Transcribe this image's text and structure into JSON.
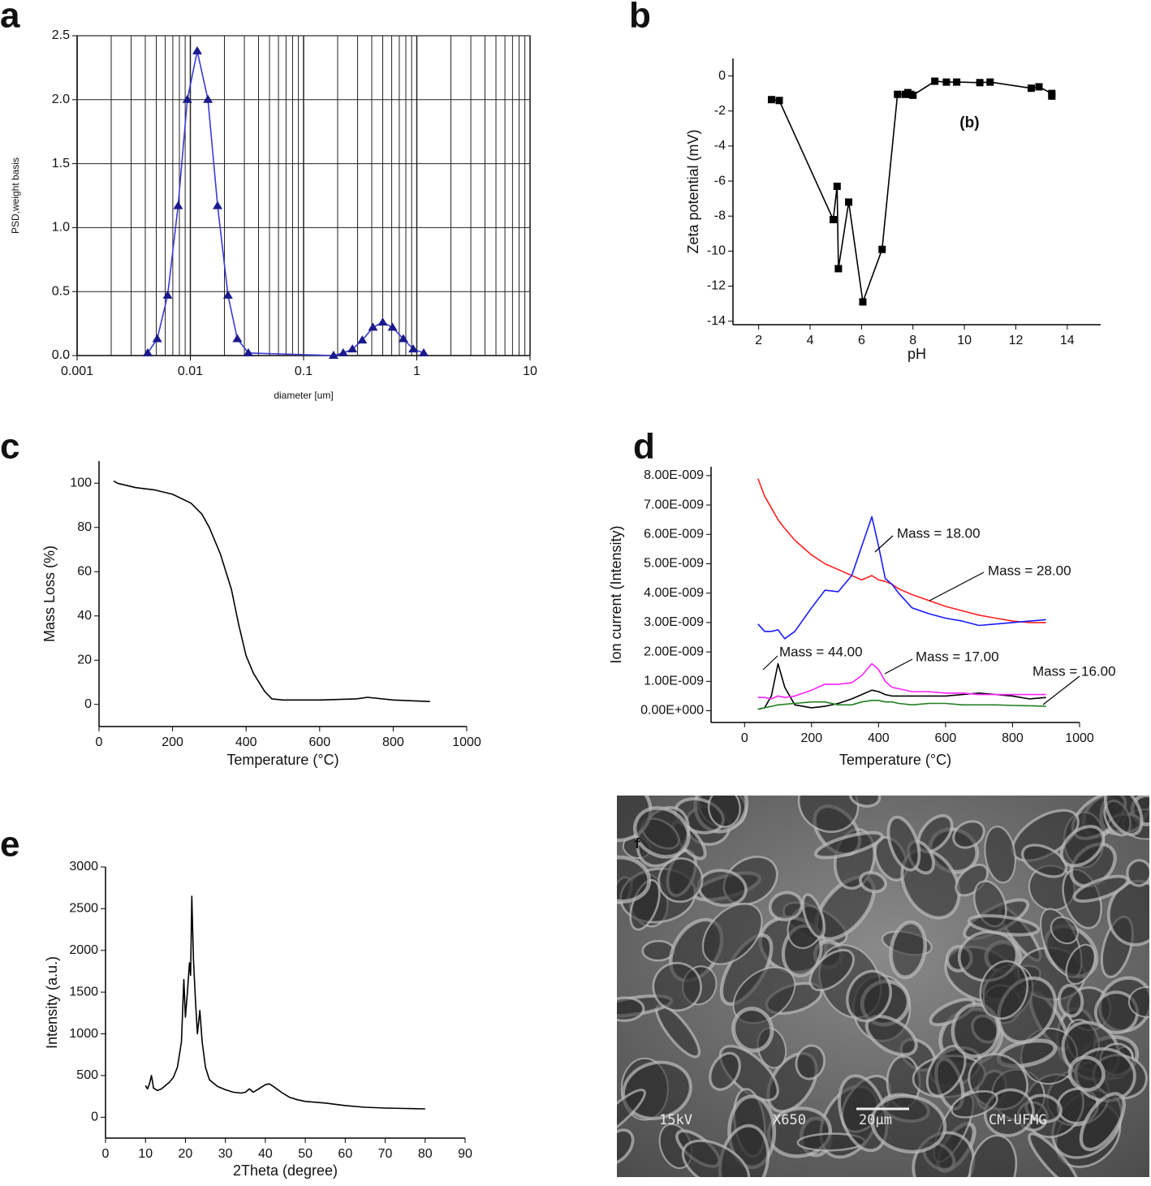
{
  "chart_data": [
    {
      "type": "line",
      "label": "a",
      "xlabel": "diameter [um]",
      "ylabel": "PSD,weight basis",
      "xscale": "log",
      "grid": true,
      "marker": "triangle",
      "x": [
        0.0042,
        0.0051,
        0.0063,
        0.0078,
        0.0094,
        0.0115,
        0.0143,
        0.0174,
        0.0215,
        0.026,
        0.0325,
        0.184,
        0.224,
        0.27,
        0.33,
        0.41,
        0.5,
        0.61,
        0.76,
        0.93,
        1.15
      ],
      "series": [
        {
          "color": "#3a3ad6",
          "values": [
            0.02,
            0.13,
            0.47,
            1.17,
            2.0,
            2.38,
            2.0,
            1.17,
            0.47,
            0.13,
            0.02,
            0.0,
            0.02,
            0.05,
            0.12,
            0.22,
            0.26,
            0.22,
            0.13,
            0.05,
            0.02
          ]
        }
      ],
      "xlim": [
        0.001,
        10
      ],
      "xticks": [
        0.001,
        0.01,
        0.1,
        1,
        10
      ],
      "ylim": [
        0,
        2.5
      ],
      "yticks": [
        {
          "value": 0,
          "label": "0.0"
        },
        0.5,
        {
          "value": 1,
          "label": "1.0"
        },
        1.5,
        {
          "value": 2,
          "label": "2.0"
        },
        2.5
      ]
    },
    {
      "type": "line",
      "label": "b",
      "xlabel": "pH",
      "ylabel": "Zeta potential (mV)",
      "marker": "square",
      "annotation": "(b)",
      "x": [
        2.5,
        2.8,
        4.9,
        5.05,
        5.1,
        5.5,
        6.05,
        6.8,
        7.4,
        7.7,
        7.8,
        7.9,
        8.0,
        8.85,
        9.3,
        9.7,
        10.6,
        11.0,
        12.6,
        12.9,
        13.4,
        13.4
      ],
      "series": [
        {
          "color": "#000000",
          "values": [
            -1.35,
            -1.4,
            -8.2,
            -6.3,
            -11.0,
            -7.2,
            -12.9,
            -9.9,
            -1.05,
            -1.05,
            -0.95,
            -1.05,
            -1.1,
            -0.3,
            -0.35,
            -0.35,
            -0.38,
            -0.35,
            -0.7,
            -0.62,
            -1.0,
            -1.15
          ]
        }
      ],
      "xlim": [
        1,
        15.3
      ],
      "xticks": [
        2,
        4,
        6,
        8,
        10,
        12,
        14
      ],
      "ylim": [
        -14.2,
        1
      ],
      "yticks": [
        -14,
        -12,
        -10,
        -8,
        -6,
        -4,
        -2,
        0
      ]
    },
    {
      "type": "line",
      "label": "c",
      "xlabel": "Temperature (°C)",
      "ylabel": "Mass Loss (%)",
      "x": [
        40,
        50,
        100,
        150,
        200,
        250,
        280,
        300,
        330,
        360,
        380,
        400,
        420,
        450,
        470,
        500,
        600,
        700,
        730,
        800,
        900
      ],
      "series": [
        {
          "color": "#000000",
          "values": [
            101,
            100,
            98,
            97,
            95,
            91,
            86,
            80,
            68,
            52,
            36,
            22,
            14,
            6,
            2.5,
            2,
            2,
            2.5,
            3.2,
            2,
            1.3
          ]
        }
      ],
      "xlim": [
        0,
        1000
      ],
      "xticks": [
        0,
        200,
        400,
        600,
        800,
        1000
      ],
      "ylim": [
        -10,
        110
      ],
      "yticks": [
        0,
        20,
        40,
        60,
        80,
        100
      ]
    },
    {
      "type": "line",
      "label": "d",
      "xlabel": "Temperature (°C)",
      "ylabel": "Ion current (Intensity)",
      "x": [
        40,
        60,
        80,
        100,
        120,
        150,
        200,
        240,
        280,
        320,
        350,
        380,
        400,
        420,
        440,
        460,
        500,
        550,
        600,
        650,
        700,
        750,
        800,
        850,
        900
      ],
      "series": [
        {
          "name": "Mass = 28.00",
          "color": "#ff2020",
          "values": [
            7.9e-09,
            7.3e-09,
            6.9e-09,
            6.5e-09,
            6.2e-09,
            5.8e-09,
            5.3e-09,
            5e-09,
            4.8e-09,
            4.6e-09,
            4.45e-09,
            4.6e-09,
            4.45e-09,
            4.4e-09,
            4.3e-09,
            4.15e-09,
            3.95e-09,
            3.75e-09,
            3.55e-09,
            3.4e-09,
            3.25e-09,
            3.15e-09,
            3.05e-09,
            3e-09,
            3e-09
          ]
        },
        {
          "name": "Mass = 18.00",
          "color": "#1a1aff",
          "values": [
            2.95e-09,
            2.7e-09,
            2.7e-09,
            2.75e-09,
            2.45e-09,
            2.7e-09,
            3.5e-09,
            4.1e-09,
            4.05e-09,
            4.6e-09,
            5.6e-09,
            6.6e-09,
            5.6e-09,
            4.5e-09,
            4.3e-09,
            4e-09,
            3.5e-09,
            3.3e-09,
            3.15e-09,
            3.05e-09,
            2.9e-09,
            2.95e-09,
            3e-09,
            3.05e-09,
            3.1e-09
          ]
        },
        {
          "name": "Mass = 44.00",
          "color": "#000000",
          "values": [
            5e-11,
            1e-10,
            5e-10,
            1.6e-09,
            8e-10,
            2e-10,
            1e-10,
            1.5e-10,
            2.5e-10,
            4e-10,
            5.5e-10,
            7e-10,
            6.5e-10,
            5.5e-10,
            5e-10,
            5e-10,
            5e-10,
            5e-10,
            5e-10,
            5.5e-10,
            6e-10,
            5.5e-10,
            5e-10,
            4e-10,
            4.5e-10
          ]
        },
        {
          "name": "Mass = 17.00",
          "color": "#ff20ff",
          "values": [
            4.5e-10,
            4.5e-10,
            4e-10,
            5e-10,
            4.5e-10,
            5e-10,
            7e-10,
            9e-10,
            9e-10,
            9.5e-10,
            1.2e-09,
            1.6e-09,
            1.4e-09,
            1e-09,
            8e-10,
            7.5e-10,
            6.5e-10,
            6.5e-10,
            6e-10,
            6e-10,
            5.5e-10,
            5.5e-10,
            5.5e-10,
            5.5e-10,
            5.5e-10
          ]
        },
        {
          "name": "Mass = 16.00",
          "color": "#208020",
          "values": [
            5e-11,
            1e-10,
            1.5e-10,
            2e-10,
            2.2e-10,
            2.5e-10,
            3e-10,
            3e-10,
            2e-10,
            2e-10,
            3e-10,
            3.5e-10,
            3.5e-10,
            3e-10,
            3e-10,
            2.5e-10,
            2e-10,
            2.5e-10,
            2.5e-10,
            2e-10,
            2e-10,
            2e-10,
            1.8e-10,
            1.7e-10,
            1.5e-10
          ]
        }
      ],
      "xlim": [
        -100,
        1000
      ],
      "xticks": [
        0,
        200,
        400,
        600,
        800,
        1000
      ],
      "ylim": [
        -4e-10,
        8.3e-09
      ],
      "yticks": [
        {
          "value": 0,
          "label": "0.00E+000"
        },
        {
          "value": 1e-09,
          "label": "1.00E-009"
        },
        {
          "value": 2e-09,
          "label": "2.00E-009"
        },
        {
          "value": 3e-09,
          "label": "3.00E-009"
        },
        {
          "value": 4e-09,
          "label": "4.00E-009"
        },
        {
          "value": 5e-09,
          "label": "5.00E-009"
        },
        {
          "value": 6e-09,
          "label": "6.00E-009"
        },
        {
          "value": 7e-09,
          "label": "7.00E-009"
        },
        {
          "value": 8e-09,
          "label": "8.00E-009"
        }
      ]
    },
    {
      "type": "line",
      "label": "e",
      "xlabel": "2Theta (degree)",
      "ylabel": "Intensity (a.u.)",
      "x": [
        10,
        10.5,
        11,
        11.5,
        12,
        13,
        14,
        15,
        16,
        17,
        18,
        19,
        19.6,
        20,
        20.5,
        21,
        21.3,
        21.6,
        22,
        22.5,
        23,
        23.6,
        24.2,
        25,
        26,
        28,
        30,
        32,
        34,
        35,
        36,
        37,
        38,
        40,
        41,
        42,
        44,
        46,
        48,
        50,
        55,
        60,
        65,
        70,
        75,
        80
      ],
      "series": [
        {
          "color": "#000000",
          "values": [
            380,
            340,
            400,
            500,
            350,
            320,
            340,
            380,
            420,
            480,
            600,
            900,
            1650,
            1200,
            1500,
            1850,
            1700,
            2650,
            1900,
            1400,
            1000,
            1280,
            900,
            600,
            450,
            370,
            330,
            300,
            290,
            300,
            340,
            300,
            330,
            390,
            400,
            370,
            300,
            240,
            210,
            190,
            170,
            140,
            120,
            110,
            105,
            100
          ]
        }
      ],
      "xlim": [
        0,
        90
      ],
      "xticks": [
        0,
        10,
        20,
        30,
        40,
        50,
        60,
        70,
        80,
        90
      ],
      "ylim": [
        -250,
        3000
      ],
      "yticks": [
        0,
        500,
        1000,
        1500,
        2000,
        2500,
        3000
      ]
    }
  ],
  "micrograph": {
    "label": "f",
    "annotations": [
      "15kV",
      "X650",
      "20μm",
      "CM-UFMG"
    ]
  }
}
